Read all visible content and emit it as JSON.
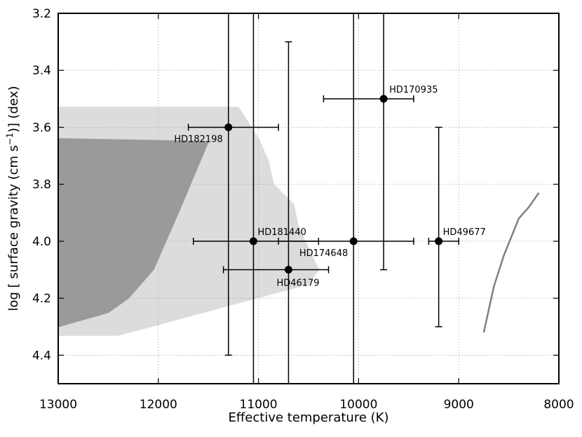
{
  "chart_data": {
    "type": "scatter",
    "title": "",
    "xlabel": "Effective temperature (K)",
    "ylabel_parts": {
      "pre": "log [ surface gravity (cm s",
      "exp": "−1",
      "post": ")] (dex)"
    },
    "xlim": [
      13000,
      8000
    ],
    "ylim": [
      4.5,
      3.2
    ],
    "x_reversed": true,
    "y_reversed": true,
    "grid": true,
    "xticks": [
      13000,
      12000,
      11000,
      10000,
      9000,
      8000
    ],
    "xtick_labels": [
      "13000",
      "12000",
      "11000",
      "10000",
      "9000",
      "8000"
    ],
    "yticks": [
      3.2,
      3.4,
      3.6,
      3.8,
      4.0,
      4.2,
      4.4
    ],
    "ytick_labels": [
      "3.2",
      "3.4",
      "3.6",
      "3.8",
      "4.0",
      "4.2",
      "4.4"
    ],
    "stars": [
      {
        "name": "HD170935",
        "teff": 9750,
        "teff_err": [
          9450,
          10350
        ],
        "logg": 3.5,
        "logg_err": [
          3.2,
          4.1
        ]
      },
      {
        "name": "HD182198",
        "teff": 11300,
        "teff_err": [
          10800,
          11700
        ],
        "logg": 3.6,
        "logg_err": [
          3.2,
          4.4
        ]
      },
      {
        "name": "HD181440",
        "teff": 11050,
        "teff_err": [
          10400,
          11650
        ],
        "logg": 4.0,
        "logg_err": [
          3.2,
          4.5
        ]
      },
      {
        "name": "HD174648",
        "teff": 10050,
        "teff_err": [
          9450,
          10800
        ],
        "logg": 4.0,
        "logg_err": [
          3.2,
          4.5
        ]
      },
      {
        "name": "HD49677",
        "teff": 9200,
        "teff_err": [
          9000,
          9300
        ],
        "logg": 4.0,
        "logg_err": [
          3.6,
          4.3
        ]
      },
      {
        "name": "HD46179",
        "teff": 10700,
        "teff_err": [
          10300,
          11350
        ],
        "logg": 4.1,
        "logg_err": [
          3.3,
          4.5
        ]
      }
    ],
    "regions": [
      {
        "id": "light",
        "color": "#dcdcdc",
        "points": [
          [
            13000,
            3.53
          ],
          [
            11200,
            3.53
          ],
          [
            11000,
            3.64
          ],
          [
            10900,
            3.72
          ],
          [
            10850,
            3.8
          ],
          [
            10650,
            3.87
          ],
          [
            10600,
            3.95
          ],
          [
            10400,
            4.1
          ],
          [
            10500,
            4.15
          ],
          [
            12400,
            4.33
          ],
          [
            13000,
            4.33
          ]
        ]
      },
      {
        "id": "dark",
        "color": "#9a9a9a",
        "points": [
          [
            13000,
            3.64
          ],
          [
            11500,
            3.65
          ],
          [
            11800,
            3.9
          ],
          [
            12050,
            4.1
          ],
          [
            12300,
            4.2
          ],
          [
            12500,
            4.25
          ],
          [
            13000,
            4.3
          ]
        ]
      }
    ],
    "curve": {
      "color": "#808080",
      "points": [
        [
          8750,
          4.32
        ],
        [
          8650,
          4.16
        ],
        [
          8550,
          4.05
        ],
        [
          8400,
          3.92
        ],
        [
          8300,
          3.88
        ],
        [
          8200,
          3.83
        ]
      ]
    },
    "colors": {
      "marker": "#000000",
      "grid": "#9a9a9a"
    }
  }
}
